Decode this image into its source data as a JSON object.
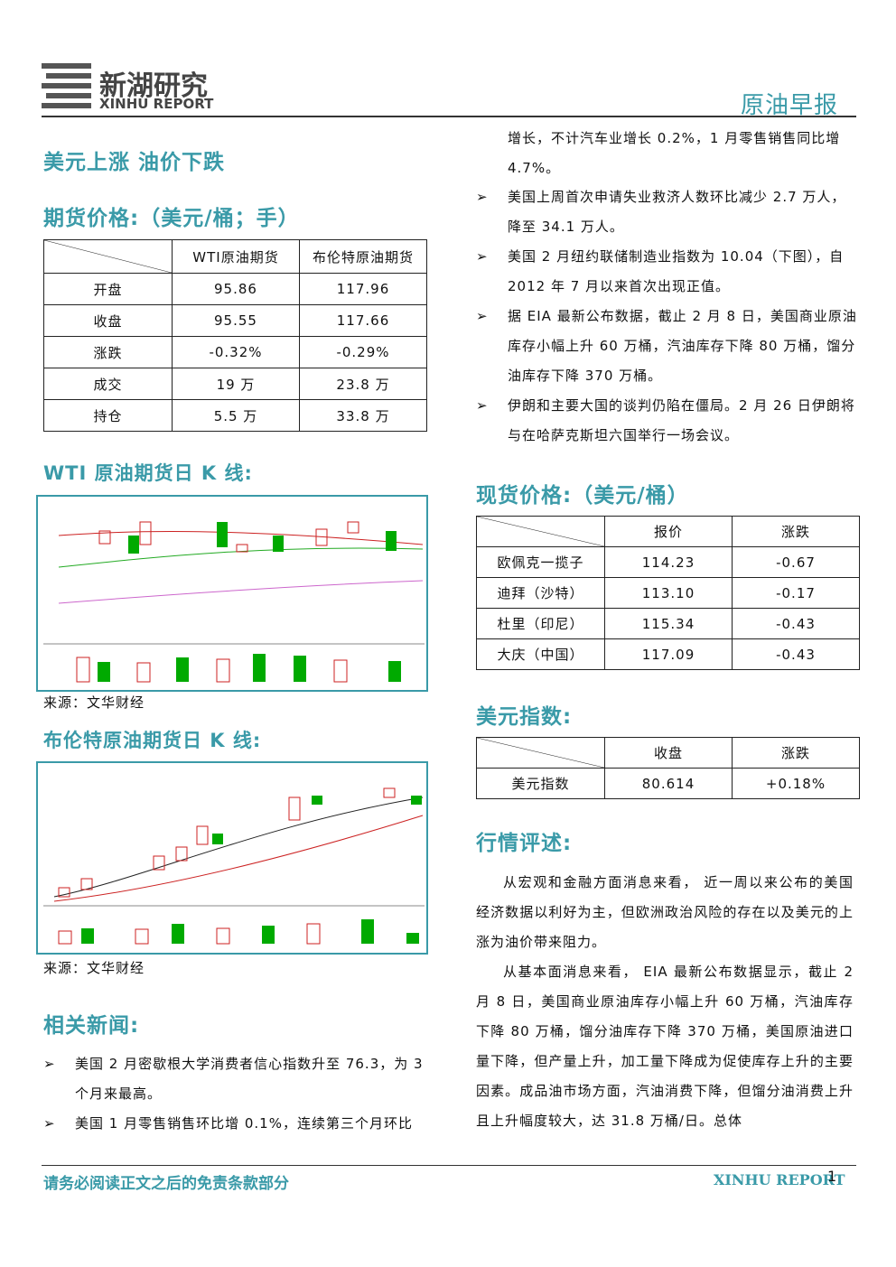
{
  "header": {
    "logo_cn": "新湖研究",
    "logo_en": "XINHU REPORT",
    "report_type": "原油早报"
  },
  "headline": "美元上涨 油价下跌",
  "futures": {
    "title": "期货价格:（美元/桶；手）",
    "columns": [
      "WTI原油期货",
      "布伦特原油期货"
    ],
    "rows": [
      [
        "开盘",
        "95.86",
        "117.96"
      ],
      [
        "收盘",
        "95.55",
        "117.66"
      ],
      [
        "涨跌",
        "-0.32%",
        "-0.29%"
      ],
      [
        "成交",
        "19 万",
        "23.8 万"
      ],
      [
        "持仓",
        "5.5 万",
        "33.8 万"
      ]
    ]
  },
  "wti_chart": {
    "title": "WTI 原油期货日 K 线:",
    "source": "来源：文华财经"
  },
  "brent_chart": {
    "title": "布伦特原油期货日 K 线:",
    "source": "来源：文华财经"
  },
  "news": {
    "title": "相关新闻:",
    "left_items": [
      "美国 2 月密歇根大学消费者信心指数升至 76.3，为 3 个月来最高。",
      "美国 1 月零售销售环比增 0.1%，连续第三个月环比"
    ],
    "continuation": "增长，不计汽车业增长 0.2%，1 月零售销售同比增 4.7%。",
    "right_items": [
      "美国上周首次申请失业救济人数环比减少 2.7 万人，降至 34.1 万人。",
      "美国 2 月纽约联储制造业指数为 10.04（下图），自 2012 年 7 月以来首次出现正值。",
      "据 EIA 最新公布数据，截止 2 月 8 日，美国商业原油库存小幅上升 60 万桶，汽油库存下降 80 万桶，馏分油库存下降 370 万桶。",
      "伊朗和主要大国的谈判仍陷在僵局。2 月 26 日伊朗将与在哈萨克斯坦六国举行一场会议。"
    ]
  },
  "spot": {
    "title": "现货价格:（美元/桶）",
    "columns": [
      "报价",
      "涨跌"
    ],
    "rows": [
      [
        "欧佩克一揽子",
        "114.23",
        "-0.67"
      ],
      [
        "迪拜（沙特）",
        "113.10",
        "-0.17"
      ],
      [
        "杜里（印尼）",
        "115.34",
        "-0.43"
      ],
      [
        "大庆（中国）",
        "117.09",
        "-0.43"
      ]
    ]
  },
  "dollar": {
    "title": "美元指数:",
    "columns": [
      "收盘",
      "涨跌"
    ],
    "rows": [
      [
        "美元指数",
        "80.614",
        "+0.18%"
      ]
    ]
  },
  "commentary": {
    "title": "行情评述:",
    "paragraphs": [
      "从宏观和金融方面消息来看， 近一周以来公布的美国经济数据以利好为主，但欧洲政治风险的存在以及美元的上涨为油价带来阻力。",
      "从基本面消息来看， EIA 最新公布数据显示，截止 2 月 8 日，美国商业原油库存小幅上升 60 万桶，汽油库存下降 80 万桶，馏分油库存下降 370 万桶，美国原油进口量下降，但产量上升，加工量下降成为促使库存上升的主要因素。成品油市场方面，汽油消费下降，但馏分油消费上升且上升幅度较大，达 31.8 万桶/日。总体"
    ]
  },
  "footer": {
    "disclaimer": "请务必阅读正文之后的免责条款部分",
    "brand": "XINHU REPORT",
    "page": "1"
  }
}
